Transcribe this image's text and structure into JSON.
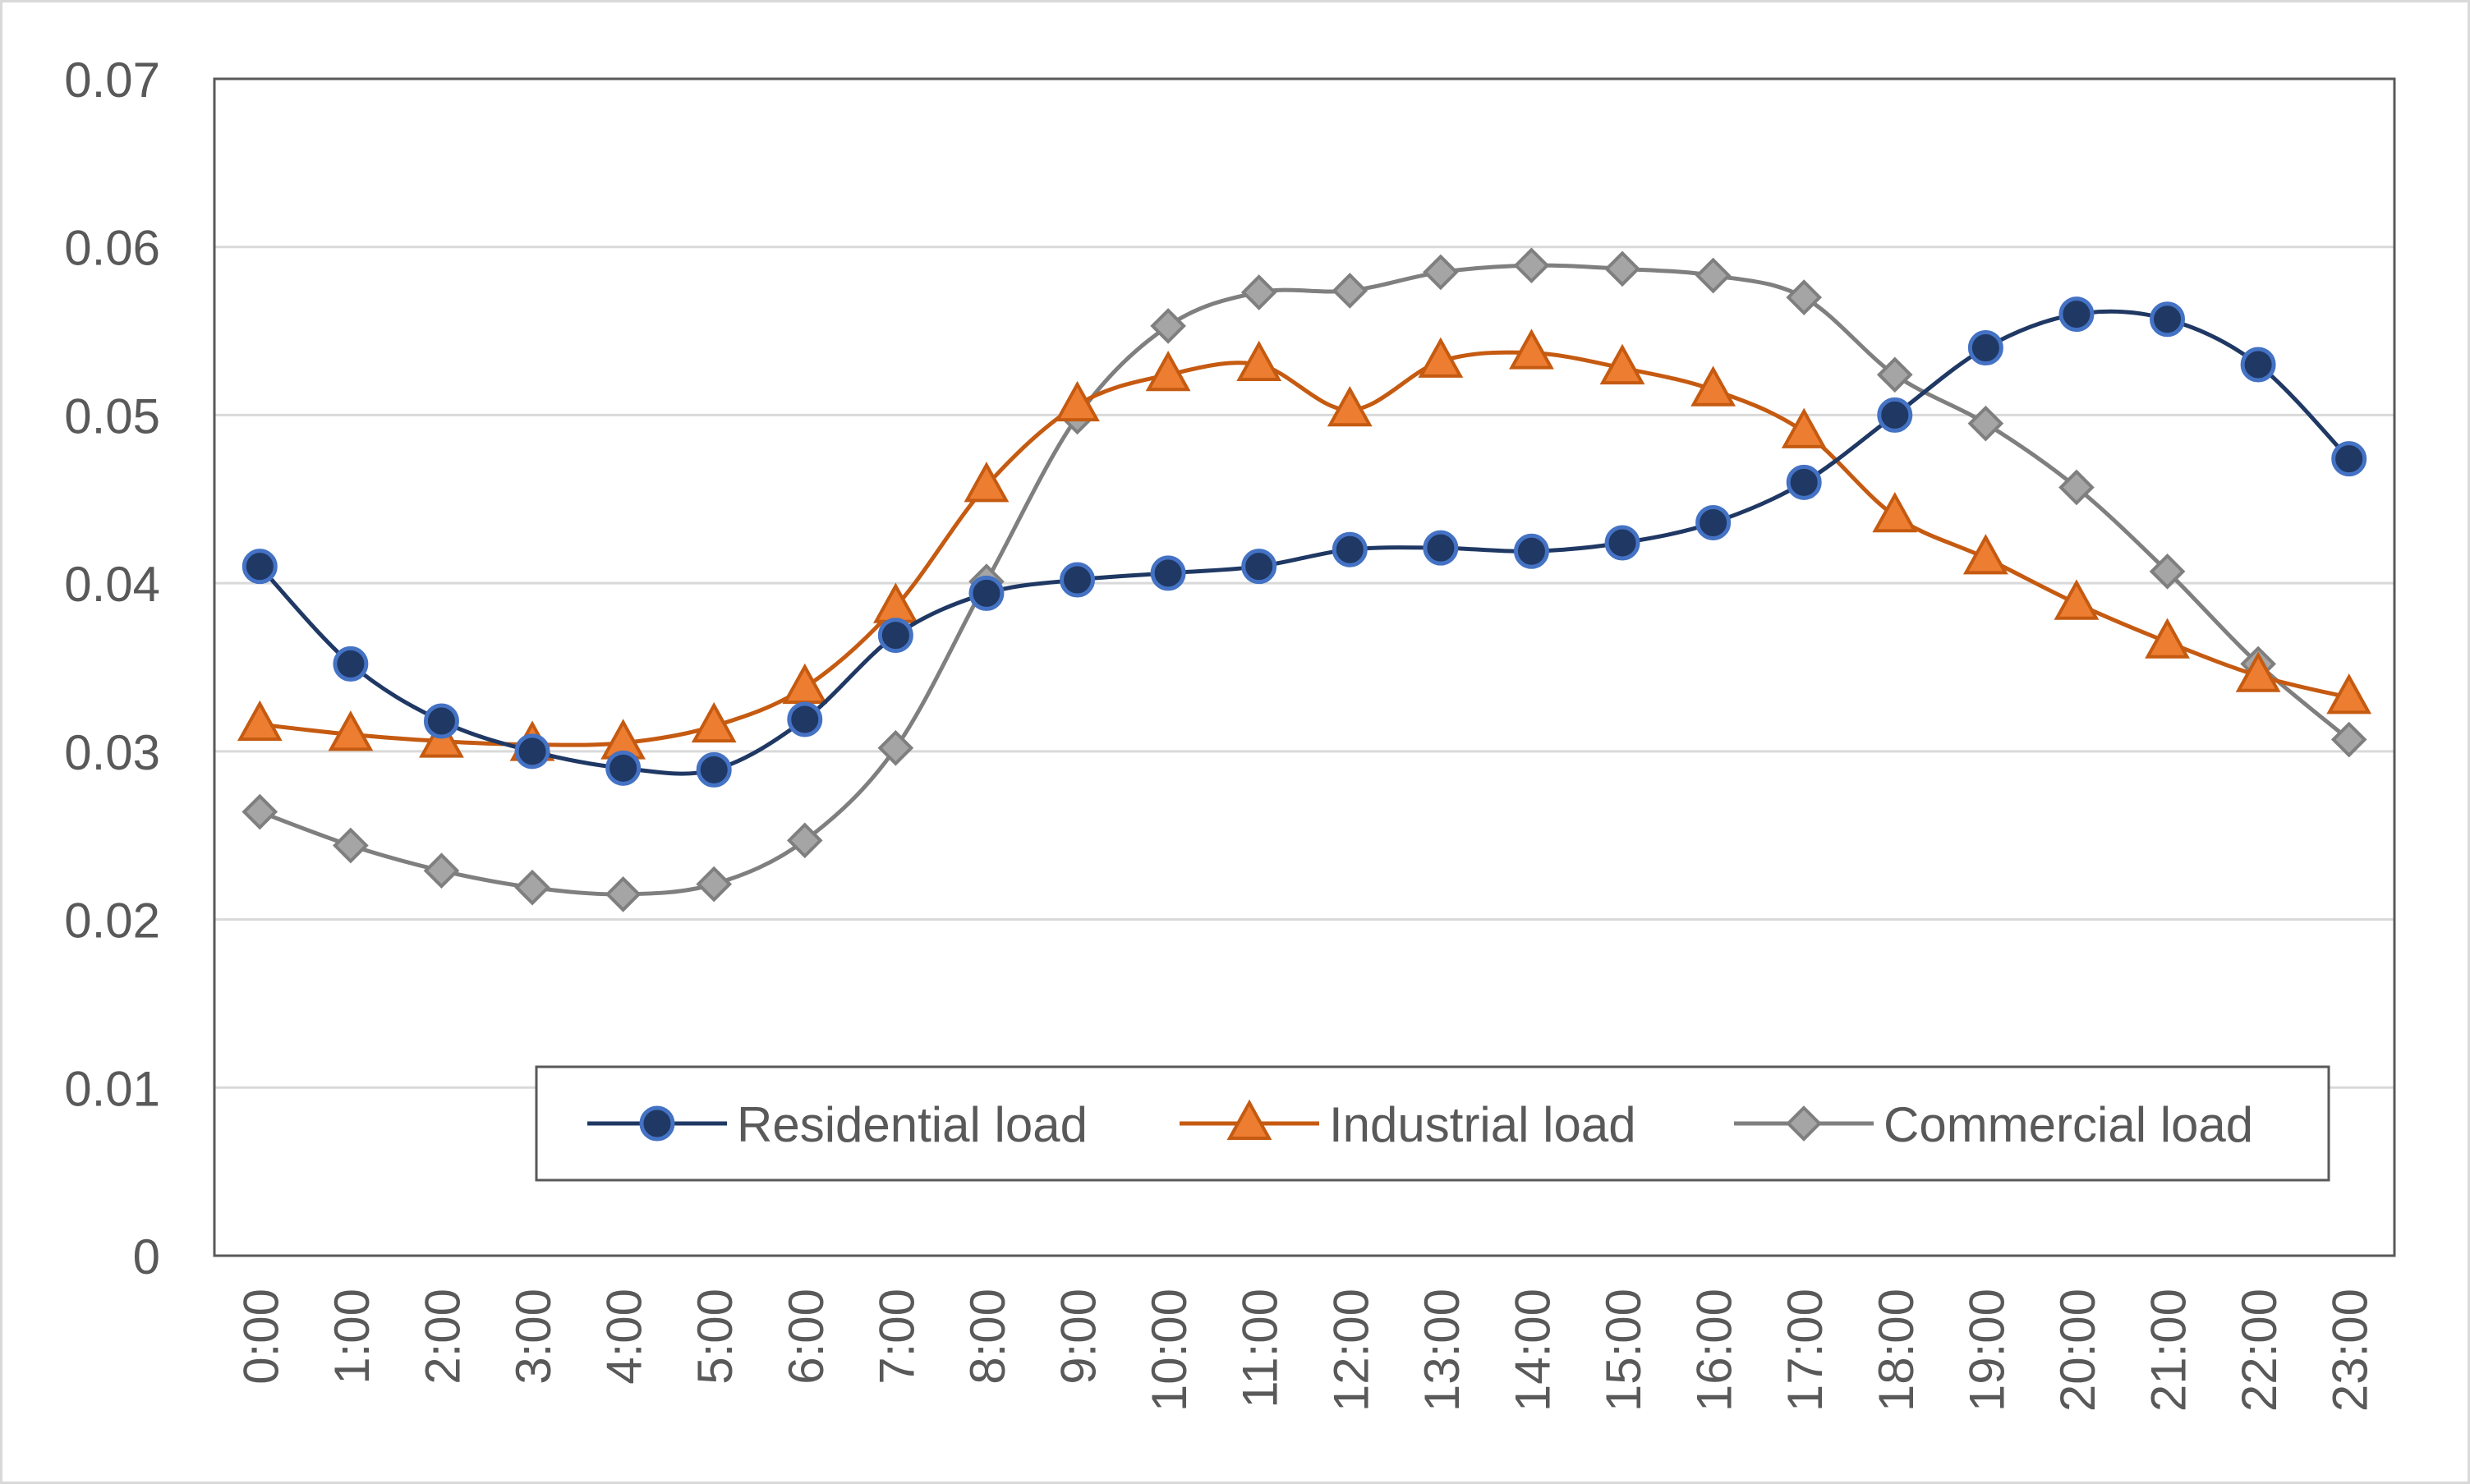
{
  "chart_data": {
    "type": "line",
    "title": "",
    "xlabel": "",
    "ylabel": "",
    "ylim": [
      0,
      0.07
    ],
    "yticks": [
      "0",
      "0.01",
      "0.02",
      "0.03",
      "0.04",
      "0.05",
      "0.06",
      "0.07"
    ],
    "categories": [
      "0:00",
      "1:00",
      "2:00",
      "3:00",
      "4:00",
      "5:00",
      "6:00",
      "7:00",
      "8:00",
      "9:00",
      "10:00",
      "11:00",
      "12:00",
      "13:00",
      "14:00",
      "15:00",
      "16:00",
      "17:00",
      "18:00",
      "19:00",
      "20:00",
      "21:00",
      "22:00",
      "23:00"
    ],
    "grid": true,
    "legend_position": "bottom-right inside",
    "series": [
      {
        "name": "Residential load",
        "marker": "circle",
        "color": "#1f3864",
        "marker_edge": "#4472c4",
        "values": [
          0.041,
          0.0352,
          0.0318,
          0.03,
          0.029,
          0.0289,
          0.0319,
          0.0369,
          0.0394,
          0.0402,
          0.0406,
          0.041,
          0.042,
          0.0421,
          0.0419,
          0.0424,
          0.0436,
          0.046,
          0.05,
          0.054,
          0.056,
          0.0557,
          0.053,
          0.0474
        ]
      },
      {
        "name": "Industrial load",
        "marker": "triangle",
        "color": "#c55a11",
        "marker_fill": "#ed7d31",
        "values": [
          0.0316,
          0.031,
          0.0306,
          0.0304,
          0.0305,
          0.0315,
          0.0338,
          0.0386,
          0.0458,
          0.0506,
          0.0524,
          0.053,
          0.0503,
          0.0532,
          0.0537,
          0.0528,
          0.0515,
          0.049,
          0.044,
          0.0415,
          0.0388,
          0.0365,
          0.0345,
          0.0332
        ]
      },
      {
        "name": "Commercial load",
        "marker": "diamond",
        "color": "#7f7f7f",
        "marker_fill": "#a5a5a5",
        "values": [
          0.0264,
          0.0244,
          0.0229,
          0.0219,
          0.0215,
          0.0221,
          0.0247,
          0.0302,
          0.0401,
          0.0499,
          0.0553,
          0.0573,
          0.0574,
          0.0585,
          0.0589,
          0.0587,
          0.0583,
          0.057,
          0.0524,
          0.0495,
          0.0457,
          0.0407,
          0.0352,
          0.0307
        ]
      }
    ]
  }
}
